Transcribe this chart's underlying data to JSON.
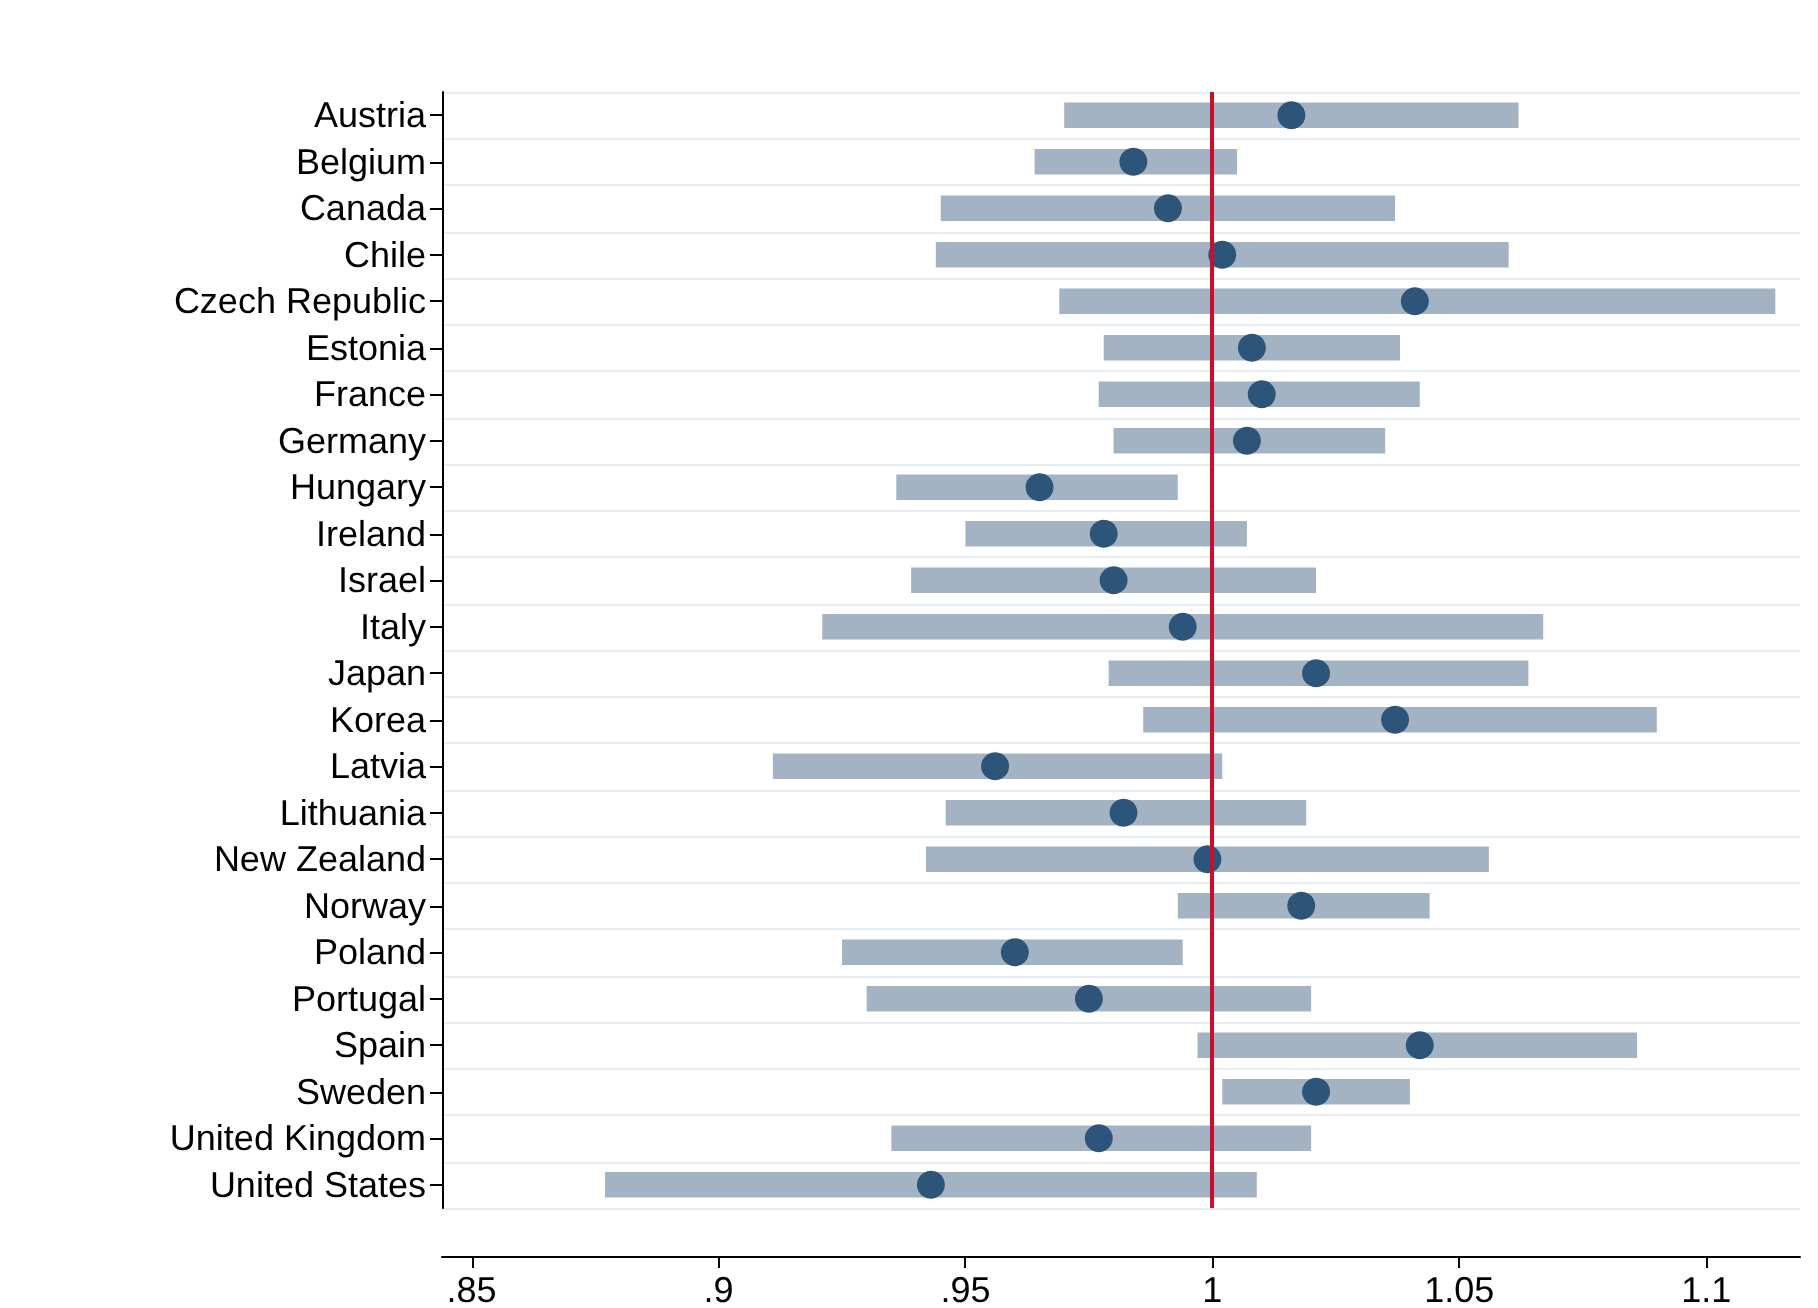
{
  "chart_data": {
    "type": "scatter",
    "orientation": "horizontal",
    "categories": [
      "Austria",
      "Belgium",
      "Canada",
      "Chile",
      "Czech Republic",
      "Estonia",
      "France",
      "Germany",
      "Hungary",
      "Ireland",
      "Israel",
      "Italy",
      "Japan",
      "Korea",
      "Latvia",
      "Lithuania",
      "New Zealand",
      "Norway",
      "Poland",
      "Portugal",
      "Spain",
      "Sweden",
      "United Kingdom",
      "United States"
    ],
    "series": [
      {
        "color": "#2d5479",
        "values": [
          1.016,
          0.984,
          0.991,
          1.002,
          1.041,
          1.008,
          1.01,
          1.007,
          0.965,
          0.978,
          0.98,
          0.994,
          1.021,
          1.037,
          0.956,
          0.982,
          0.999,
          1.018,
          0.96,
          0.975,
          1.042,
          1.021,
          0.977,
          0.943
        ],
        "errors": [
          [
            0.97,
            1.062
          ],
          [
            0.964,
            1.005
          ],
          [
            0.945,
            1.037
          ],
          [
            0.944,
            1.06
          ],
          [
            0.969,
            1.114
          ],
          [
            0.978,
            1.038
          ],
          [
            0.977,
            1.042
          ],
          [
            0.98,
            1.035
          ],
          [
            0.936,
            0.993
          ],
          [
            0.95,
            1.007
          ],
          [
            0.939,
            1.021
          ],
          [
            0.921,
            1.067
          ],
          [
            0.979,
            1.064
          ],
          [
            0.986,
            1.09
          ],
          [
            0.911,
            1.002
          ],
          [
            0.946,
            1.019
          ],
          [
            0.942,
            1.056
          ],
          [
            0.993,
            1.044
          ],
          [
            0.925,
            0.994
          ],
          [
            0.93,
            1.02
          ],
          [
            0.997,
            1.086
          ],
          [
            1.002,
            1.04
          ],
          [
            0.935,
            1.02
          ],
          [
            0.877,
            1.009
          ]
        ]
      }
    ],
    "xlim": [
      0.844,
      1.119
    ],
    "xticks": [
      {
        "value": 0.85,
        "label": ".85"
      },
      {
        "value": 0.9,
        "label": ".9"
      },
      {
        "value": 0.95,
        "label": ".95"
      },
      1,
      1.05,
      1.1
    ],
    "ref_lines": [
      {
        "axis": "x",
        "value": 1,
        "color": "#c8102e"
      }
    ],
    "grid": "y",
    "marker": "circle"
  }
}
